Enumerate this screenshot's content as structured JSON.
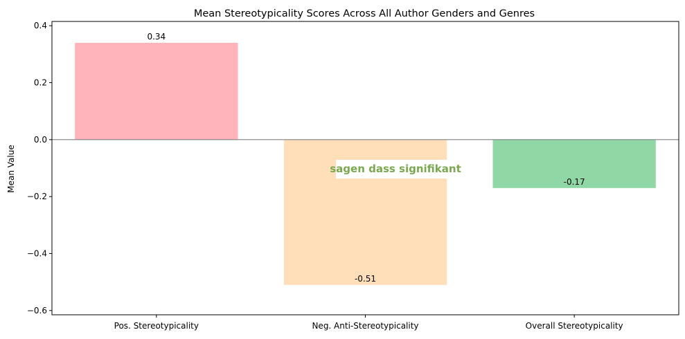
{
  "chart_data": {
    "type": "bar",
    "title": "Mean Stereotypicality Scores Across All Author Genders and Genres",
    "xlabel": "",
    "ylabel": "Mean Value",
    "categories": [
      "Pos. Stereotypicality",
      "Neg. Anti-Stereotypicality",
      "Overall Stereotypicality"
    ],
    "values": [
      0.34,
      -0.51,
      -0.17
    ],
    "value_labels": [
      "0.34",
      "-0.51",
      "-0.17"
    ],
    "colors": [
      "#ffb3ba",
      "#ffdfba",
      "#8fd8a6"
    ],
    "ylim": [
      -0.615,
      0.415
    ],
    "yticks": [
      0.4,
      0.2,
      0.0,
      -0.2,
      -0.4,
      -0.6
    ],
    "ytick_labels": [
      "0.4",
      "0.2",
      "0.0",
      "−0.2",
      "−0.4",
      "−0.6"
    ],
    "zero_line": true,
    "zero_line_color": "#808080",
    "grid": false,
    "legend": "none",
    "overlay_text": "sagen dass signifikant"
  }
}
